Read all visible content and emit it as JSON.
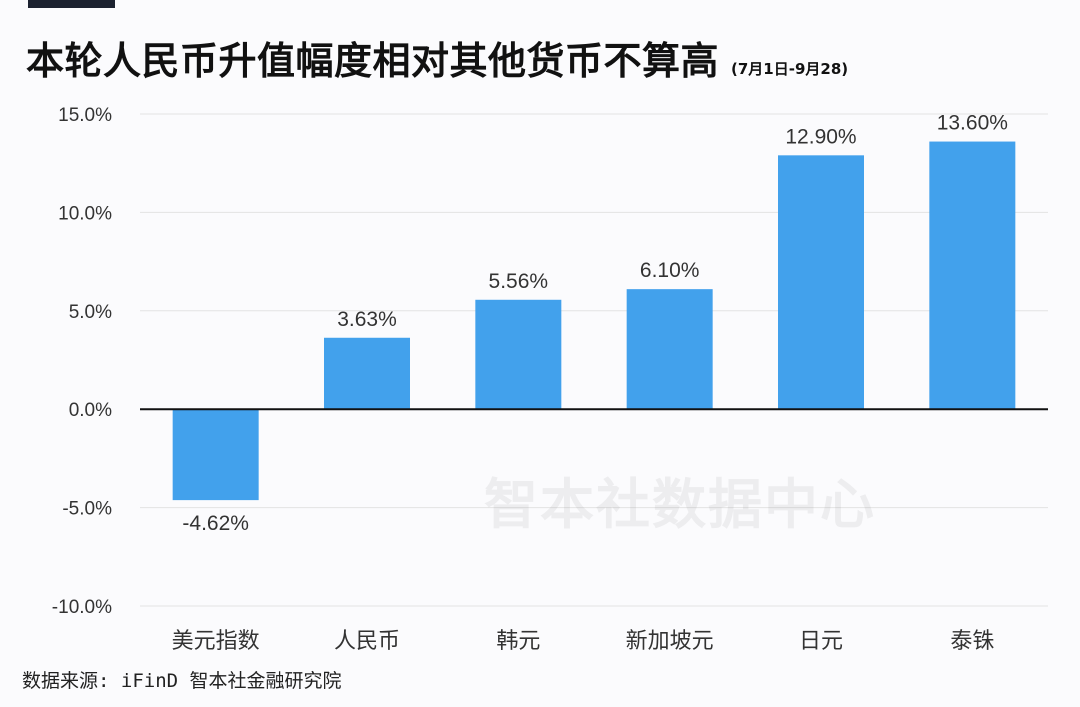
{
  "header": {
    "title": "本轮人民币升值幅度相对其他货币不算高",
    "subtitle": "(7月1日-9月28)"
  },
  "watermark": "智本社数据中心",
  "source": "数据来源: iFinD 智本社金融研究院",
  "colors": {
    "bar": "#42a1ec",
    "grid": "#e3e3e3",
    "zero_line": "#111111",
    "accent_bar": "#1c2230"
  },
  "chart_data": {
    "type": "bar",
    "title": "本轮人民币升值幅度相对其他货币不算高",
    "subtitle": "(7月1日-9月28)",
    "categories": [
      "美元指数",
      "人民币",
      "韩元",
      "新加坡元",
      "日元",
      "泰铢"
    ],
    "values": [
      -4.62,
      3.63,
      5.56,
      6.1,
      12.9,
      13.6
    ],
    "data_labels": [
      "-4.62%",
      "3.63%",
      "5.56%",
      "6.10%",
      "12.90%",
      "13.60%"
    ],
    "yticks": [
      15,
      10,
      5,
      0,
      -5,
      -10
    ],
    "ytick_labels": [
      "15.0%",
      "10.0%",
      "5.0%",
      "0.0%",
      "-5.0%",
      "-10.0%"
    ],
    "ylim": [
      -10,
      15
    ],
    "xlabel": "",
    "ylabel": "",
    "grid": true,
    "legend": "none"
  }
}
